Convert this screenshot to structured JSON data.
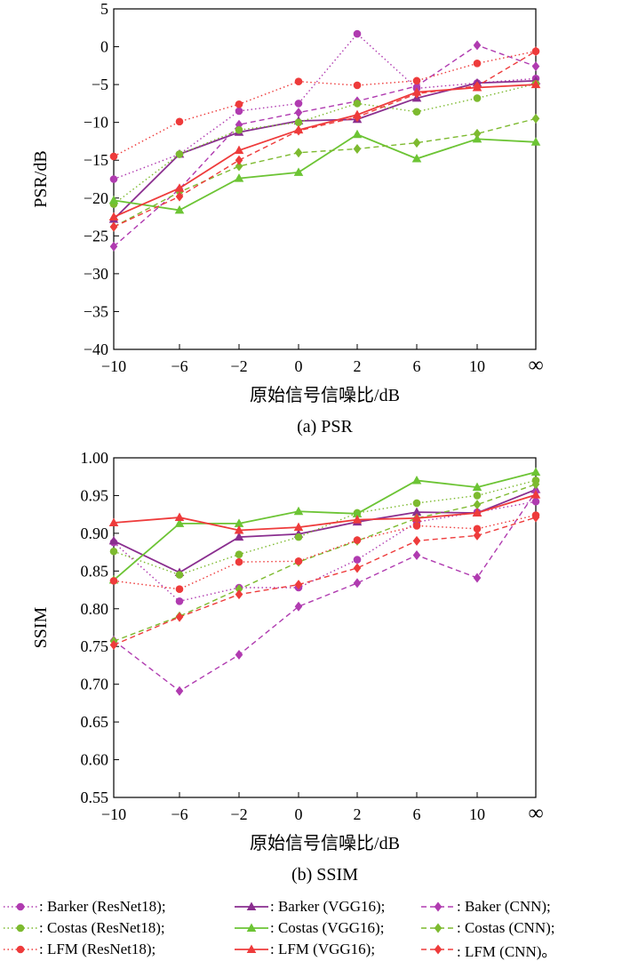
{
  "chart_data": [
    {
      "type": "line",
      "caption": "(a) PSR",
      "xlabel": "原始信号信噪比/dB",
      "ylabel": "PSR/dB",
      "categories": [
        "−10",
        "−6",
        "−2",
        "0",
        "2",
        "6",
        "10",
        "∞"
      ],
      "ylim": [
        -40,
        5
      ],
      "yticks": [
        5,
        0,
        -5,
        -10,
        -15,
        -20,
        -25,
        -30,
        -35,
        -40
      ],
      "ytick_labels": [
        "5",
        "0",
        "−5",
        "−10",
        "−15",
        "−20",
        "−25",
        "−30",
        "−35",
        "−40"
      ],
      "series": [
        {
          "name": "Barker (ResNet18)",
          "values": [
            -17.5,
            -14.2,
            -8.5,
            -7.5,
            1.7,
            -5.5,
            -4.8,
            -4.2
          ]
        },
        {
          "name": "Barker (VGG16)",
          "values": [
            -22.8,
            -14.2,
            -11.3,
            -9.8,
            -9.6,
            -6.8,
            -4.8,
            -4.5
          ]
        },
        {
          "name": "Baker (CNN)",
          "values": [
            -26.4,
            -18.8,
            -10.3,
            -8.7,
            -7.2,
            -5.2,
            0.2,
            -2.6
          ]
        },
        {
          "name": "Costas (ResNet18)",
          "values": [
            -20.8,
            -14.2,
            -11.0,
            -10.0,
            -7.5,
            -8.6,
            -6.8,
            -4.9
          ]
        },
        {
          "name": "Costas (VGG16)",
          "values": [
            -20.3,
            -21.6,
            -17.4,
            -16.6,
            -11.6,
            -14.8,
            -12.2,
            -12.6
          ]
        },
        {
          "name": "Costas (CNN)",
          "values": [
            -23.8,
            -19.2,
            -15.8,
            -14.0,
            -13.5,
            -12.7,
            -11.5,
            -9.5
          ]
        },
        {
          "name": "LFM (ResNet18)",
          "values": [
            -14.5,
            -9.9,
            -7.6,
            -4.6,
            -5.1,
            -4.5,
            -2.2,
            -0.6
          ]
        },
        {
          "name": "LFM (VGG16)",
          "values": [
            -22.5,
            -18.7,
            -13.7,
            -11.0,
            -9.0,
            -6.0,
            -5.4,
            -5.0
          ]
        },
        {
          "name": "LFM (CNN)",
          "values": [
            -23.8,
            -19.8,
            -15.0,
            -11.1,
            -9.3,
            -6.2,
            -5.2,
            -0.6
          ]
        }
      ]
    },
    {
      "type": "line",
      "caption": "(b) SSIM",
      "xlabel": "原始信号信噪比/dB",
      "ylabel": "SSIM",
      "categories": [
        "−10",
        "−6",
        "−2",
        "0",
        "2",
        "6",
        "10",
        "∞"
      ],
      "ylim": [
        0.55,
        1.0
      ],
      "yticks": [
        1.0,
        0.95,
        0.9,
        0.85,
        0.8,
        0.75,
        0.7,
        0.65,
        0.6,
        0.55
      ],
      "ytick_labels": [
        "1.00",
        "0.95",
        "0.90",
        "0.85",
        "0.80",
        "0.75",
        "0.70",
        "0.65",
        "0.60",
        "0.55"
      ],
      "series": [
        {
          "name": "Barker (ResNet18)",
          "values": [
            0.888,
            0.81,
            0.828,
            0.828,
            0.865,
            0.915,
            0.928,
            0.942
          ]
        },
        {
          "name": "Barker (VGG16)",
          "values": [
            0.89,
            0.848,
            0.895,
            0.899,
            0.915,
            0.928,
            0.927,
            0.958
          ]
        },
        {
          "name": "Baker (CNN)",
          "values": [
            0.758,
            0.691,
            0.739,
            0.803,
            0.834,
            0.871,
            0.841,
            0.955
          ]
        },
        {
          "name": "Costas (ResNet18)",
          "values": [
            0.876,
            0.845,
            0.872,
            0.895,
            0.927,
            0.94,
            0.95,
            0.97
          ]
        },
        {
          "name": "Costas (VGG16)",
          "values": [
            0.838,
            0.913,
            0.913,
            0.929,
            0.926,
            0.97,
            0.961,
            0.981
          ]
        },
        {
          "name": "Costas (CNN)",
          "values": [
            0.757,
            0.79,
            0.826,
            0.862,
            0.89,
            0.92,
            0.938,
            0.965
          ]
        },
        {
          "name": "LFM (ResNet18)",
          "values": [
            0.837,
            0.826,
            0.862,
            0.863,
            0.891,
            0.91,
            0.906,
            0.924
          ]
        },
        {
          "name": "LFM (VGG16)",
          "values": [
            0.914,
            0.921,
            0.904,
            0.908,
            0.918,
            0.92,
            0.927,
            0.951
          ]
        },
        {
          "name": "LFM (CNN)",
          "values": [
            0.752,
            0.789,
            0.819,
            0.832,
            0.854,
            0.89,
            0.897,
            0.921
          ]
        }
      ]
    }
  ],
  "styles": [
    {
      "color": "#b03bb0",
      "dash": "dot",
      "marker": "circle"
    },
    {
      "color": "#8a2e8f",
      "dash": "solid",
      "marker": "triangle"
    },
    {
      "color": "#b03bb0",
      "dash": "dash",
      "marker": "diamond"
    },
    {
      "color": "#7dba2f",
      "dash": "dot",
      "marker": "circle"
    },
    {
      "color": "#6cc434",
      "dash": "solid",
      "marker": "triangle"
    },
    {
      "color": "#7dba2f",
      "dash": "dash",
      "marker": "diamond"
    },
    {
      "color": "#ee3b3b",
      "dash": "dot",
      "marker": "circle"
    },
    {
      "color": "#ee3b3b",
      "dash": "solid",
      "marker": "triangle"
    },
    {
      "color": "#ee3b3b",
      "dash": "dash",
      "marker": "diamond"
    }
  ],
  "legend": [
    {
      "label": ": Barker (ResNet18);"
    },
    {
      "label": ": Barker (VGG16);"
    },
    {
      "label": ": Baker (CNN);"
    },
    {
      "label": ": Costas (ResNet18);"
    },
    {
      "label": ": Costas (VGG16);"
    },
    {
      "label": ": Costas (CNN);"
    },
    {
      "label": ": LFM (ResNet18);"
    },
    {
      "label": ": LFM (VGG16);"
    },
    {
      "label": ": LFM (CNN)。"
    }
  ]
}
